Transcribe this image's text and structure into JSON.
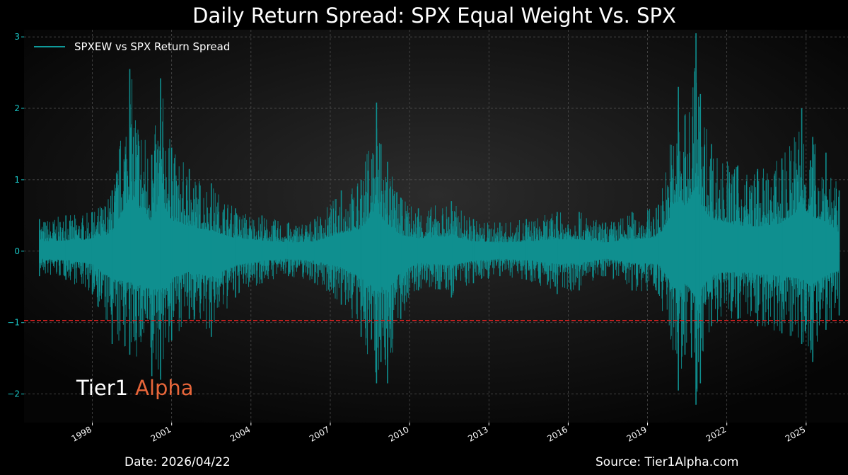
{
  "chart_data": {
    "type": "line",
    "title": "Daily Return Spread: SPX Equal Weight Vs. SPX",
    "xlabel": "",
    "ylabel": "",
    "ylim": [
      -2.4,
      3.1
    ],
    "xlim": [
      "1995-06-01",
      "2026-08-01"
    ],
    "y_ticks": [
      -2,
      -1,
      0,
      1,
      2,
      3
    ],
    "y_tick_labels": [
      "−2",
      "−1",
      "0",
      "1",
      "2",
      "3"
    ],
    "x_tick_labels": [
      "1998",
      "2001",
      "2004",
      "2007",
      "2010",
      "2013",
      "2016",
      "2019",
      "2022",
      "2025"
    ],
    "grid": true,
    "legend_position": "top-left",
    "colors": {
      "series": "#0f8f8f",
      "threshold": "#e02020",
      "grid": "#555555",
      "brand_accent": "#e8663a"
    },
    "series": [
      {
        "name": "SPXEW vs SPX Return Spread",
        "x": [
          "1996-01",
          "1997-01",
          "1998-01",
          "1998-10",
          "1999-06",
          "2000-04",
          "2000-08",
          "2001-01",
          "2001-09",
          "2002-07",
          "2003-06",
          "2004-06",
          "2005-06",
          "2006-06",
          "2007-06",
          "2008-03",
          "2008-10",
          "2008-12",
          "2009-03",
          "2009-09",
          "2010-05",
          "2011-08",
          "2012-06",
          "2013-06",
          "2014-06",
          "2015-08",
          "2016-06",
          "2017-06",
          "2018-06",
          "2019-06",
          "2020-03",
          "2020-06",
          "2020-11",
          "2021-01",
          "2021-06",
          "2022-06",
          "2023-03",
          "2024-02",
          "2024-11",
          "2025-04",
          "2025-10",
          "2026-04"
        ],
        "upper": [
          0.45,
          0.5,
          0.55,
          0.85,
          2.55,
          1.35,
          2.42,
          1.45,
          1.15,
          0.95,
          0.6,
          0.5,
          0.4,
          0.45,
          0.85,
          1.0,
          2.08,
          1.5,
          1.25,
          0.75,
          0.6,
          0.7,
          0.45,
          0.4,
          0.45,
          0.55,
          0.55,
          0.4,
          0.55,
          0.65,
          2.3,
          1.9,
          3.05,
          2.2,
          1.5,
          1.2,
          1.15,
          1.3,
          2.0,
          1.6,
          1.38,
          0.85
        ],
        "lower": [
          -0.35,
          -0.4,
          -0.6,
          -1.3,
          -1.45,
          -1.75,
          -1.8,
          -1.25,
          -0.95,
          -1.2,
          -0.65,
          -0.45,
          -0.35,
          -0.45,
          -0.75,
          -1.2,
          -1.85,
          -1.55,
          -1.85,
          -0.95,
          -0.55,
          -0.65,
          -0.45,
          -0.35,
          -0.4,
          -0.6,
          -0.55,
          -0.35,
          -0.55,
          -0.6,
          -1.95,
          -1.45,
          -2.15,
          -1.85,
          -1.05,
          -0.95,
          -1.05,
          -1.15,
          -1.3,
          -1.55,
          -1.1,
          -0.9
        ]
      }
    ],
    "threshold_line": {
      "y": -0.97
    }
  },
  "brand": {
    "part1": "Tier1",
    "part2": "Alpha"
  },
  "footer": {
    "date": "Date: 2026/04/22",
    "source": "Source: Tier1Alpha.com"
  }
}
